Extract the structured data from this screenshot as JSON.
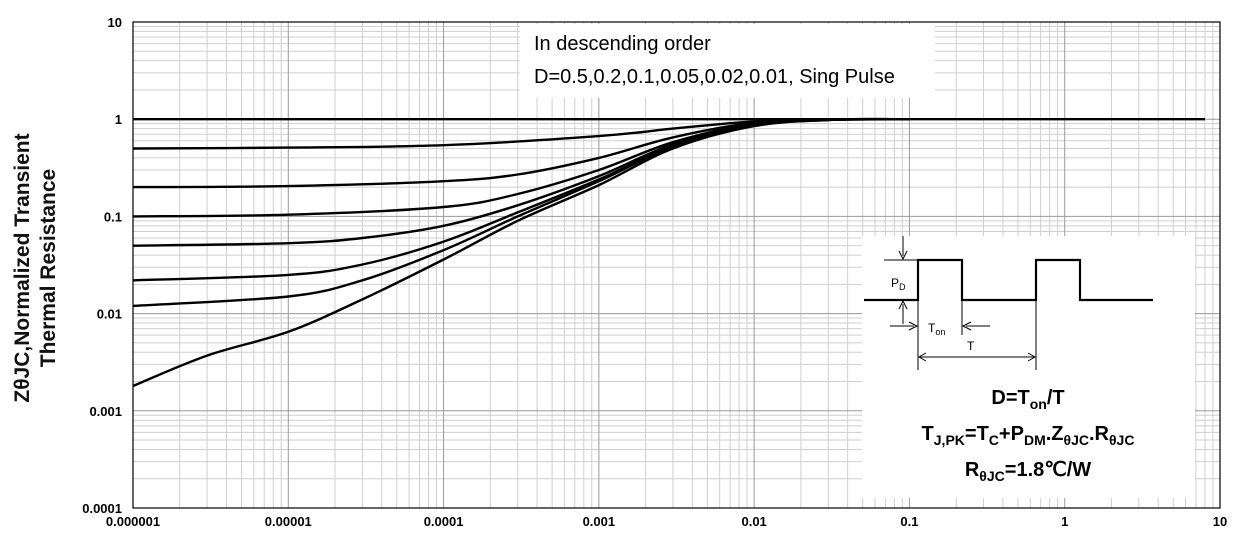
{
  "chart_data": {
    "type": "line",
    "title": "",
    "xlabel": "",
    "ylabel_line1": "ZθJC,Normalized Transient",
    "ylabel_line2": "Thermal Resistance",
    "x_scale": "log",
    "y_scale": "log",
    "xlim": [
      1e-06,
      10
    ],
    "ylim": [
      0.0001,
      10
    ],
    "x_ticks": [
      "0.000001",
      "0.00001",
      "0.0001",
      "0.001",
      "0.01",
      "0.1",
      "1",
      "10"
    ],
    "y_ticks": [
      "0.0001",
      "0.001",
      "0.01",
      "0.1",
      "1",
      "10"
    ],
    "grid": true,
    "annotation_line1": "In descending order",
    "annotation_line2": "D=0.5,0.2,0.1,0.05,0.02,0.01, Sing Pulse",
    "series": [
      {
        "x": [
          1e-06,
          1e-05,
          0.0001,
          0.001,
          0.01,
          0.1,
          8
        ],
        "y": [
          1,
          1,
          1,
          1,
          1,
          1,
          1
        ]
      },
      {
        "x": [
          1e-06,
          1e-05,
          0.0001,
          0.001,
          0.003,
          0.01,
          0.03,
          0.1
        ],
        "y": [
          0.5,
          0.51,
          0.54,
          0.67,
          0.8,
          0.95,
          0.99,
          1.0
        ]
      },
      {
        "x": [
          1e-06,
          1e-05,
          0.0001,
          0.0003,
          0.001,
          0.003,
          0.01,
          0.03,
          0.1
        ],
        "y": [
          0.2,
          0.205,
          0.23,
          0.27,
          0.4,
          0.65,
          0.92,
          0.99,
          1.0
        ]
      },
      {
        "x": [
          1e-06,
          1e-05,
          0.0001,
          0.0003,
          0.001,
          0.003,
          0.01,
          0.03,
          0.1
        ],
        "y": [
          0.1,
          0.104,
          0.125,
          0.17,
          0.3,
          0.58,
          0.9,
          0.99,
          1.0
        ]
      },
      {
        "x": [
          1e-06,
          1e-05,
          3e-05,
          0.0001,
          0.0003,
          0.001,
          0.003,
          0.01,
          0.03,
          0.1
        ],
        "y": [
          0.05,
          0.053,
          0.06,
          0.08,
          0.13,
          0.26,
          0.55,
          0.88,
          0.99,
          1.0
        ]
      },
      {
        "x": [
          1e-06,
          1e-05,
          3e-05,
          0.0001,
          0.0003,
          0.001,
          0.003,
          0.01,
          0.03,
          0.1
        ],
        "y": [
          0.022,
          0.025,
          0.032,
          0.055,
          0.11,
          0.24,
          0.53,
          0.87,
          0.99,
          1.0
        ]
      },
      {
        "x": [
          1e-06,
          1e-05,
          3e-05,
          0.0001,
          0.0003,
          0.001,
          0.003,
          0.01,
          0.03,
          0.1
        ],
        "y": [
          0.012,
          0.015,
          0.022,
          0.045,
          0.1,
          0.23,
          0.52,
          0.86,
          0.98,
          1.0
        ]
      },
      {
        "x": [
          1e-06,
          3e-06,
          1e-05,
          3e-05,
          0.0001,
          0.0003,
          0.001,
          0.003,
          0.01,
          0.03,
          0.1
        ],
        "y": [
          0.0018,
          0.0037,
          0.0065,
          0.014,
          0.036,
          0.09,
          0.21,
          0.5,
          0.85,
          0.98,
          1.0
        ]
      }
    ]
  },
  "inset": {
    "pd_label": "P",
    "pd_sub": "D",
    "ton_label": "T",
    "ton_sub": "on",
    "t_label": "T",
    "eq1_a": "D=T",
    "eq1_sub": "on",
    "eq1_b": "/T",
    "eq2_a": "T",
    "eq2_sub1": "J,PK",
    "eq2_b": "=T",
    "eq2_sub2": "C",
    "eq2_c": "+P",
    "eq2_sub3": "DM",
    "eq2_d": ".Z",
    "eq2_sub4": "θJC",
    "eq2_e": ".R",
    "eq2_sub5": "θJC",
    "eq3_a": "R",
    "eq3_sub": "θJC",
    "eq3_b": "=1.8℃/W"
  }
}
